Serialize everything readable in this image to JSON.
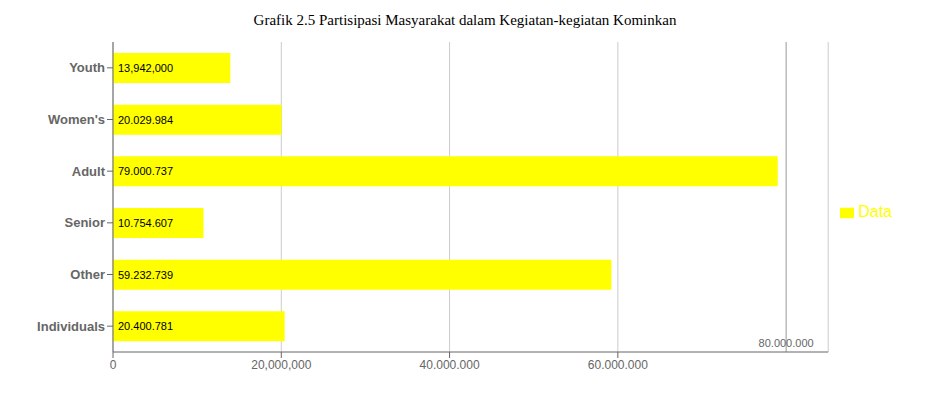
{
  "chart_data": {
    "type": "bar",
    "orientation": "horizontal",
    "title": "Grafik 2.5 Partisipasi Masyarakat dalam Kegiatan-kegiatan Kominkan",
    "categories": [
      "Individuals",
      "Other",
      "Senior",
      "Adult",
      "Women's",
      "Youth"
    ],
    "series": [
      {
        "name": "Data",
        "color": "#ffff00",
        "values": [
          20400781,
          59232739,
          10754607,
          79000737,
          20029984,
          13942000
        ],
        "value_labels": [
          "20.400.781",
          "59.232.739",
          "10.754.607",
          "79.000.737",
          "20.029.984",
          "13,942,000"
        ]
      }
    ],
    "data_labels": true,
    "xlim": [
      0,
      85000000
    ],
    "xticks": [
      0,
      {
        "value": 20000000,
        "label": "20,000,000"
      },
      {
        "value": 40000000,
        "label": "40.000.000"
      },
      {
        "value": 60000000,
        "label": "60.000.000"
      }
    ],
    "grid": true,
    "legend": "right",
    "annotations": [
      {
        "text": "80.000.000",
        "x": 80000000
      }
    ]
  }
}
